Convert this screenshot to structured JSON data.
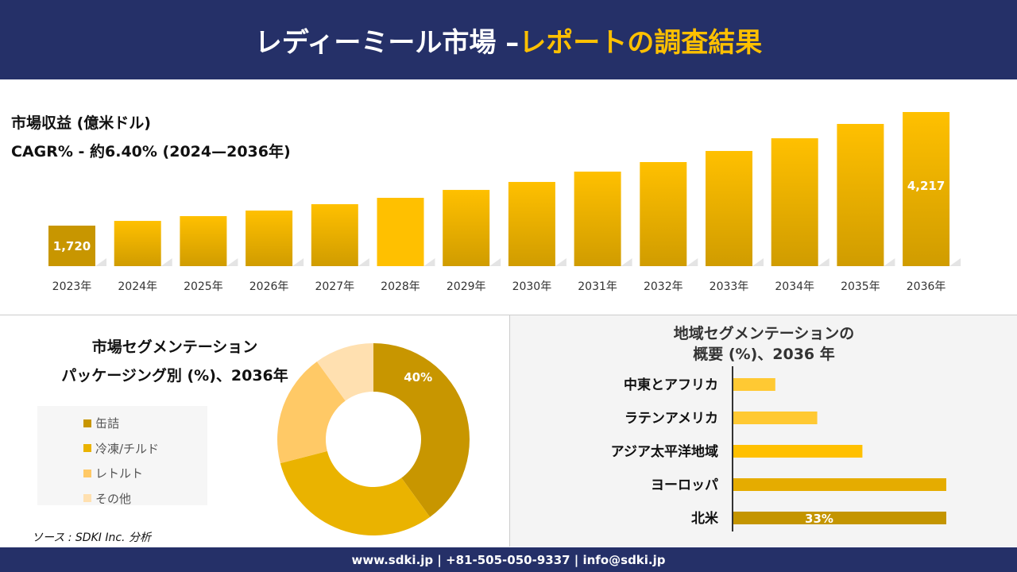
{
  "header": {
    "title_a": "レディーミール市場 –",
    "title_b": "レポートの調査結果"
  },
  "colors": {
    "header_bg": "#253068",
    "accent": "#ffc000",
    "dark_gold": "#c89600"
  },
  "chart_data": [
    {
      "type": "bar",
      "title": "市場収益 (億米ドル)",
      "subtitle": "CAGR% - 約6.40% (2024—2036年)",
      "categories": [
        "2023年",
        "2024年",
        "2025年",
        "2026年",
        "2027年",
        "2028年",
        "2029年",
        "2030年",
        "2031年",
        "2032年",
        "2033年",
        "2034年",
        "2035年",
        "2036年"
      ],
      "values": [
        1720,
        1824,
        1929,
        2051,
        2191,
        2331,
        2505,
        2680,
        2907,
        3117,
        3361,
        3640,
        3955,
        4217
      ],
      "data_labels": {
        "0": "1,720",
        "13": "4,217"
      },
      "grid": false
    },
    {
      "type": "pie",
      "title_line1": "市場セグメンテーション",
      "title_line2": "パッケージング別 (%)、2036年",
      "labels": [
        "缶詰",
        "冷凍/チルド",
        "レトルト",
        "その他"
      ],
      "values": [
        40,
        31,
        19,
        10
      ],
      "colors": [
        "#c89600",
        "#eab300",
        "#ffc966",
        "#ffe0b0"
      ],
      "data_labels": {
        "0": "40%"
      },
      "donut": true,
      "legend": "left"
    },
    {
      "type": "bar",
      "orientation": "horizontal",
      "title_line1": "地域セグメンテーションの",
      "title_line2": "概要 (%)、2036 年",
      "categories": [
        "中東とアフリカ",
        "ラテンアメリカ",
        "アジア太平洋地域",
        "ヨーロッパ",
        "北米"
      ],
      "values": [
        6.5,
        13,
        20,
        33,
        33
      ],
      "colors": [
        "#ffc933",
        "#ffc933",
        "#ffc000",
        "#e5ac00",
        "#c49500"
      ],
      "data_labels": {
        "4": "33%"
      }
    }
  ],
  "source": "ソース : SDKI Inc. 分析",
  "footer": "www.sdki.jp | +81-505-050-9337 | info@sdki.jp"
}
